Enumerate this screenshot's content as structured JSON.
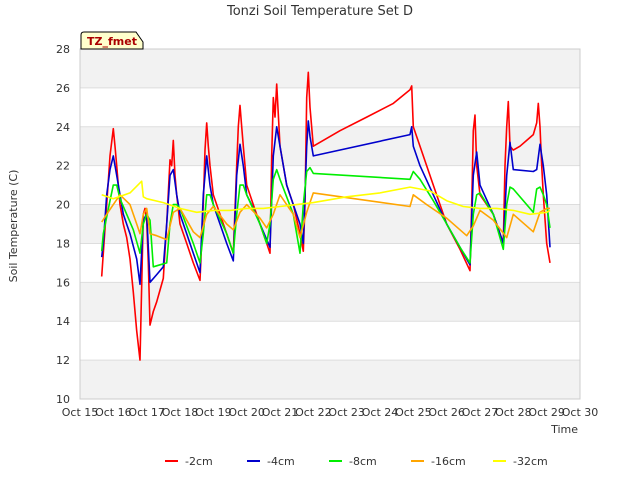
{
  "chart_data": {
    "type": "line",
    "title": "Tonzi Soil Temperature Set D",
    "xlabel": "Time",
    "ylabel": "Soil Temperature (C)",
    "badge": "TZ_fmet",
    "xlim": [
      15,
      30
    ],
    "ylim": [
      10,
      28
    ],
    "x_ticks": [
      15,
      16,
      17,
      18,
      19,
      20,
      21,
      22,
      23,
      24,
      25,
      26,
      27,
      28,
      29,
      30
    ],
    "x_tick_labels": [
      "Oct 15",
      "Oct 16",
      "Oct 17",
      "Oct 18",
      "Oct 19",
      "Oct 20",
      "Oct 21",
      "Oct 22",
      "Oct 23",
      "Oct 24",
      "Oct 25",
      "Oct 26",
      "Oct 27",
      "Oct 28",
      "Oct 29",
      "Oct 30"
    ],
    "y_ticks": [
      10,
      12,
      14,
      16,
      18,
      20,
      22,
      24,
      26,
      28
    ],
    "y_tick_labels": [
      "10",
      "12",
      "14",
      "16",
      "18",
      "20",
      "22",
      "24",
      "26",
      "28"
    ],
    "grid": true,
    "legend_position": "bottom",
    "series": [
      {
        "name": "-2cm",
        "color": "#ff0000",
        "x": [
          15.65,
          15.7,
          15.8,
          15.9,
          16.0,
          16.05,
          16.1,
          16.15,
          16.2,
          16.25,
          16.3,
          16.4,
          16.5,
          16.6,
          16.7,
          16.8,
          16.9,
          16.95,
          17.0,
          17.05,
          17.1,
          17.2,
          17.3,
          17.4,
          17.5,
          17.6,
          17.7,
          17.75,
          17.8,
          17.85,
          17.9,
          18.0,
          18.2,
          18.4,
          18.6,
          18.7,
          18.75,
          18.8,
          18.85,
          18.9,
          19.0,
          19.2,
          19.4,
          19.6,
          19.7,
          19.75,
          19.8,
          19.85,
          19.9,
          20.0,
          20.2,
          20.4,
          20.6,
          20.7,
          20.75,
          20.8,
          20.85,
          20.9,
          21.0,
          21.2,
          21.4,
          21.6,
          21.7,
          21.75,
          21.8,
          21.85,
          21.9,
          22.0,
          22.8,
          23.6,
          24.4,
          24.9,
          24.95,
          25.0,
          25.2,
          25.6,
          26.0,
          26.4,
          26.7,
          26.75,
          26.8,
          26.85,
          26.9,
          27.0,
          27.2,
          27.4,
          27.6,
          27.7,
          27.75,
          27.8,
          27.85,
          27.9,
          28.0,
          28.2,
          28.4,
          28.6,
          28.7,
          28.75,
          28.8,
          28.85,
          28.9,
          29.0,
          29.1
        ],
        "y": [
          16.3,
          17.5,
          20.0,
          22.5,
          23.9,
          23.0,
          22.0,
          21.0,
          20.0,
          19.5,
          19.0,
          18.3,
          17.2,
          15.5,
          13.5,
          12.0,
          19.5,
          19.8,
          19.2,
          17.0,
          13.8,
          14.5,
          15.0,
          15.6,
          16.2,
          19.0,
          22.3,
          22.0,
          23.3,
          21.5,
          20.5,
          19.0,
          18.0,
          17.0,
          16.1,
          20.0,
          22.8,
          24.2,
          23.0,
          22.0,
          20.5,
          19.5,
          18.5,
          17.5,
          22.0,
          24.0,
          25.1,
          24.0,
          23.0,
          21.0,
          20.0,
          19.0,
          18.0,
          17.5,
          22.5,
          25.5,
          24.5,
          26.2,
          23.0,
          21.0,
          20.0,
          18.5,
          17.6,
          20.0,
          25.5,
          26.8,
          25.0,
          23.0,
          23.8,
          24.5,
          25.2,
          25.9,
          26.1,
          24.0,
          23.0,
          21.0,
          19.0,
          17.7,
          16.6,
          20.0,
          23.8,
          24.6,
          22.0,
          20.5,
          20.0,
          19.5,
          18.5,
          18.0,
          22.0,
          24.0,
          25.3,
          23.0,
          22.8,
          23.0,
          23.3,
          23.6,
          24.2,
          25.2,
          24.0,
          22.0,
          20.5,
          18.0,
          17.0
        ]
      },
      {
        "name": "-4cm",
        "color": "#0000cc",
        "x": [
          15.65,
          15.7,
          15.8,
          15.9,
          16.0,
          16.1,
          16.2,
          16.3,
          16.5,
          16.7,
          16.8,
          16.9,
          17.0,
          17.1,
          17.3,
          17.5,
          17.6,
          17.7,
          17.8,
          17.9,
          18.0,
          18.2,
          18.4,
          18.6,
          18.7,
          18.8,
          18.9,
          19.0,
          19.2,
          19.4,
          19.6,
          19.7,
          19.8,
          19.9,
          20.0,
          20.2,
          20.4,
          20.6,
          20.7,
          20.8,
          20.9,
          21.0,
          21.2,
          21.4,
          21.6,
          21.7,
          21.8,
          21.85,
          21.9,
          22.0,
          24.9,
          24.95,
          25.0,
          25.2,
          25.6,
          26.0,
          26.4,
          26.7,
          26.8,
          26.9,
          27.0,
          27.4,
          27.7,
          27.8,
          27.9,
          28.0,
          28.6,
          28.7,
          28.8,
          28.9,
          29.0,
          29.1
        ],
        "y": [
          17.3,
          18.0,
          20.5,
          21.8,
          22.5,
          21.5,
          20.5,
          19.5,
          18.5,
          17.2,
          15.9,
          19.2,
          19.5,
          16.0,
          16.4,
          16.8,
          19.0,
          21.5,
          21.8,
          20.5,
          19.5,
          18.5,
          17.5,
          16.5,
          20.5,
          22.5,
          21.0,
          20.0,
          19.0,
          18.0,
          17.1,
          21.5,
          23.1,
          22.0,
          20.5,
          19.8,
          19.0,
          18.2,
          17.8,
          22.5,
          24.0,
          23.0,
          21.0,
          20.0,
          19.0,
          18.0,
          23.0,
          24.3,
          23.5,
          22.5,
          23.6,
          24.0,
          23.0,
          22.0,
          20.5,
          19.0,
          17.8,
          16.9,
          21.5,
          22.7,
          21.0,
          19.5,
          18.0,
          21.5,
          23.2,
          21.8,
          21.7,
          21.8,
          23.1,
          22.0,
          20.5,
          17.8
        ]
      },
      {
        "name": "-8cm",
        "color": "#00ee00",
        "x": [
          15.65,
          15.7,
          15.9,
          16.0,
          16.1,
          16.2,
          16.4,
          16.6,
          16.8,
          16.9,
          17.0,
          17.1,
          17.2,
          17.4,
          17.6,
          17.7,
          17.8,
          17.9,
          18.0,
          18.4,
          18.6,
          18.7,
          18.8,
          18.9,
          19.0,
          19.4,
          19.6,
          19.7,
          19.8,
          19.9,
          20.0,
          20.4,
          20.6,
          20.7,
          20.8,
          20.9,
          21.0,
          21.4,
          21.6,
          21.7,
          21.8,
          21.9,
          22.0,
          24.9,
          25.0,
          25.2,
          25.6,
          26.0,
          26.4,
          26.7,
          26.8,
          26.9,
          27.0,
          27.4,
          27.7,
          27.8,
          27.9,
          28.0,
          28.6,
          28.7,
          28.8,
          28.9,
          29.0,
          29.1
        ],
        "y": [
          17.6,
          18.5,
          20.2,
          21.0,
          21.0,
          20.3,
          19.5,
          18.7,
          17.5,
          19.0,
          19.5,
          19.2,
          16.8,
          16.9,
          17.0,
          19.0,
          20.0,
          20.0,
          19.8,
          18.0,
          17.0,
          18.5,
          20.5,
          20.5,
          20.0,
          18.5,
          17.5,
          19.5,
          21.0,
          21.0,
          20.5,
          19.0,
          18.0,
          19.0,
          21.3,
          21.8,
          21.3,
          19.5,
          17.5,
          20.0,
          21.7,
          21.9,
          21.6,
          21.3,
          21.7,
          21.3,
          20.2,
          19.0,
          17.8,
          17.0,
          19.5,
          20.5,
          20.6,
          19.5,
          17.7,
          20.0,
          20.9,
          20.8,
          19.6,
          20.8,
          20.9,
          20.5,
          20.0,
          18.8
        ]
      },
      {
        "name": "-16cm",
        "color": "#ffa500",
        "x": [
          15.65,
          15.8,
          16.0,
          16.2,
          16.5,
          16.7,
          16.8,
          16.9,
          17.0,
          17.1,
          17.3,
          17.6,
          17.8,
          18.0,
          18.4,
          18.6,
          18.8,
          19.0,
          19.4,
          19.6,
          19.8,
          20.0,
          20.4,
          20.6,
          20.8,
          21.0,
          21.4,
          21.6,
          21.8,
          22.0,
          24.9,
          25.0,
          25.4,
          26.0,
          26.6,
          26.8,
          27.0,
          27.4,
          27.8,
          28.0,
          28.6,
          28.8,
          29.0,
          29.1
        ],
        "y": [
          19.1,
          19.5,
          20.0,
          20.5,
          20.0,
          19.0,
          18.5,
          19.5,
          19.8,
          18.5,
          18.4,
          18.2,
          19.6,
          19.8,
          18.6,
          18.3,
          19.5,
          19.9,
          19.0,
          18.7,
          19.6,
          20.0,
          19.3,
          18.8,
          19.5,
          20.5,
          19.5,
          18.3,
          19.6,
          20.6,
          19.9,
          20.5,
          20.0,
          19.3,
          18.4,
          18.9,
          19.7,
          19.2,
          18.3,
          19.5,
          18.6,
          19.6,
          19.8,
          19.8
        ]
      },
      {
        "name": "-32cm",
        "color": "#ffff00",
        "x": [
          15.65,
          16.0,
          16.5,
          16.85,
          16.9,
          17.0,
          17.5,
          18.0,
          18.5,
          19.0,
          19.5,
          20.0,
          20.5,
          21.0,
          21.5,
          22.0,
          23.0,
          24.0,
          24.9,
          25.5,
          26.0,
          26.5,
          27.0,
          27.5,
          28.0,
          28.5,
          29.0,
          29.1
        ],
        "y": [
          20.5,
          20.3,
          20.6,
          21.2,
          20.4,
          20.3,
          20.1,
          19.8,
          19.6,
          19.7,
          19.7,
          19.8,
          19.8,
          19.9,
          20.0,
          20.1,
          20.4,
          20.6,
          20.9,
          20.7,
          20.2,
          19.9,
          19.8,
          19.8,
          19.7,
          19.5,
          19.6,
          19.7
        ]
      }
    ]
  }
}
